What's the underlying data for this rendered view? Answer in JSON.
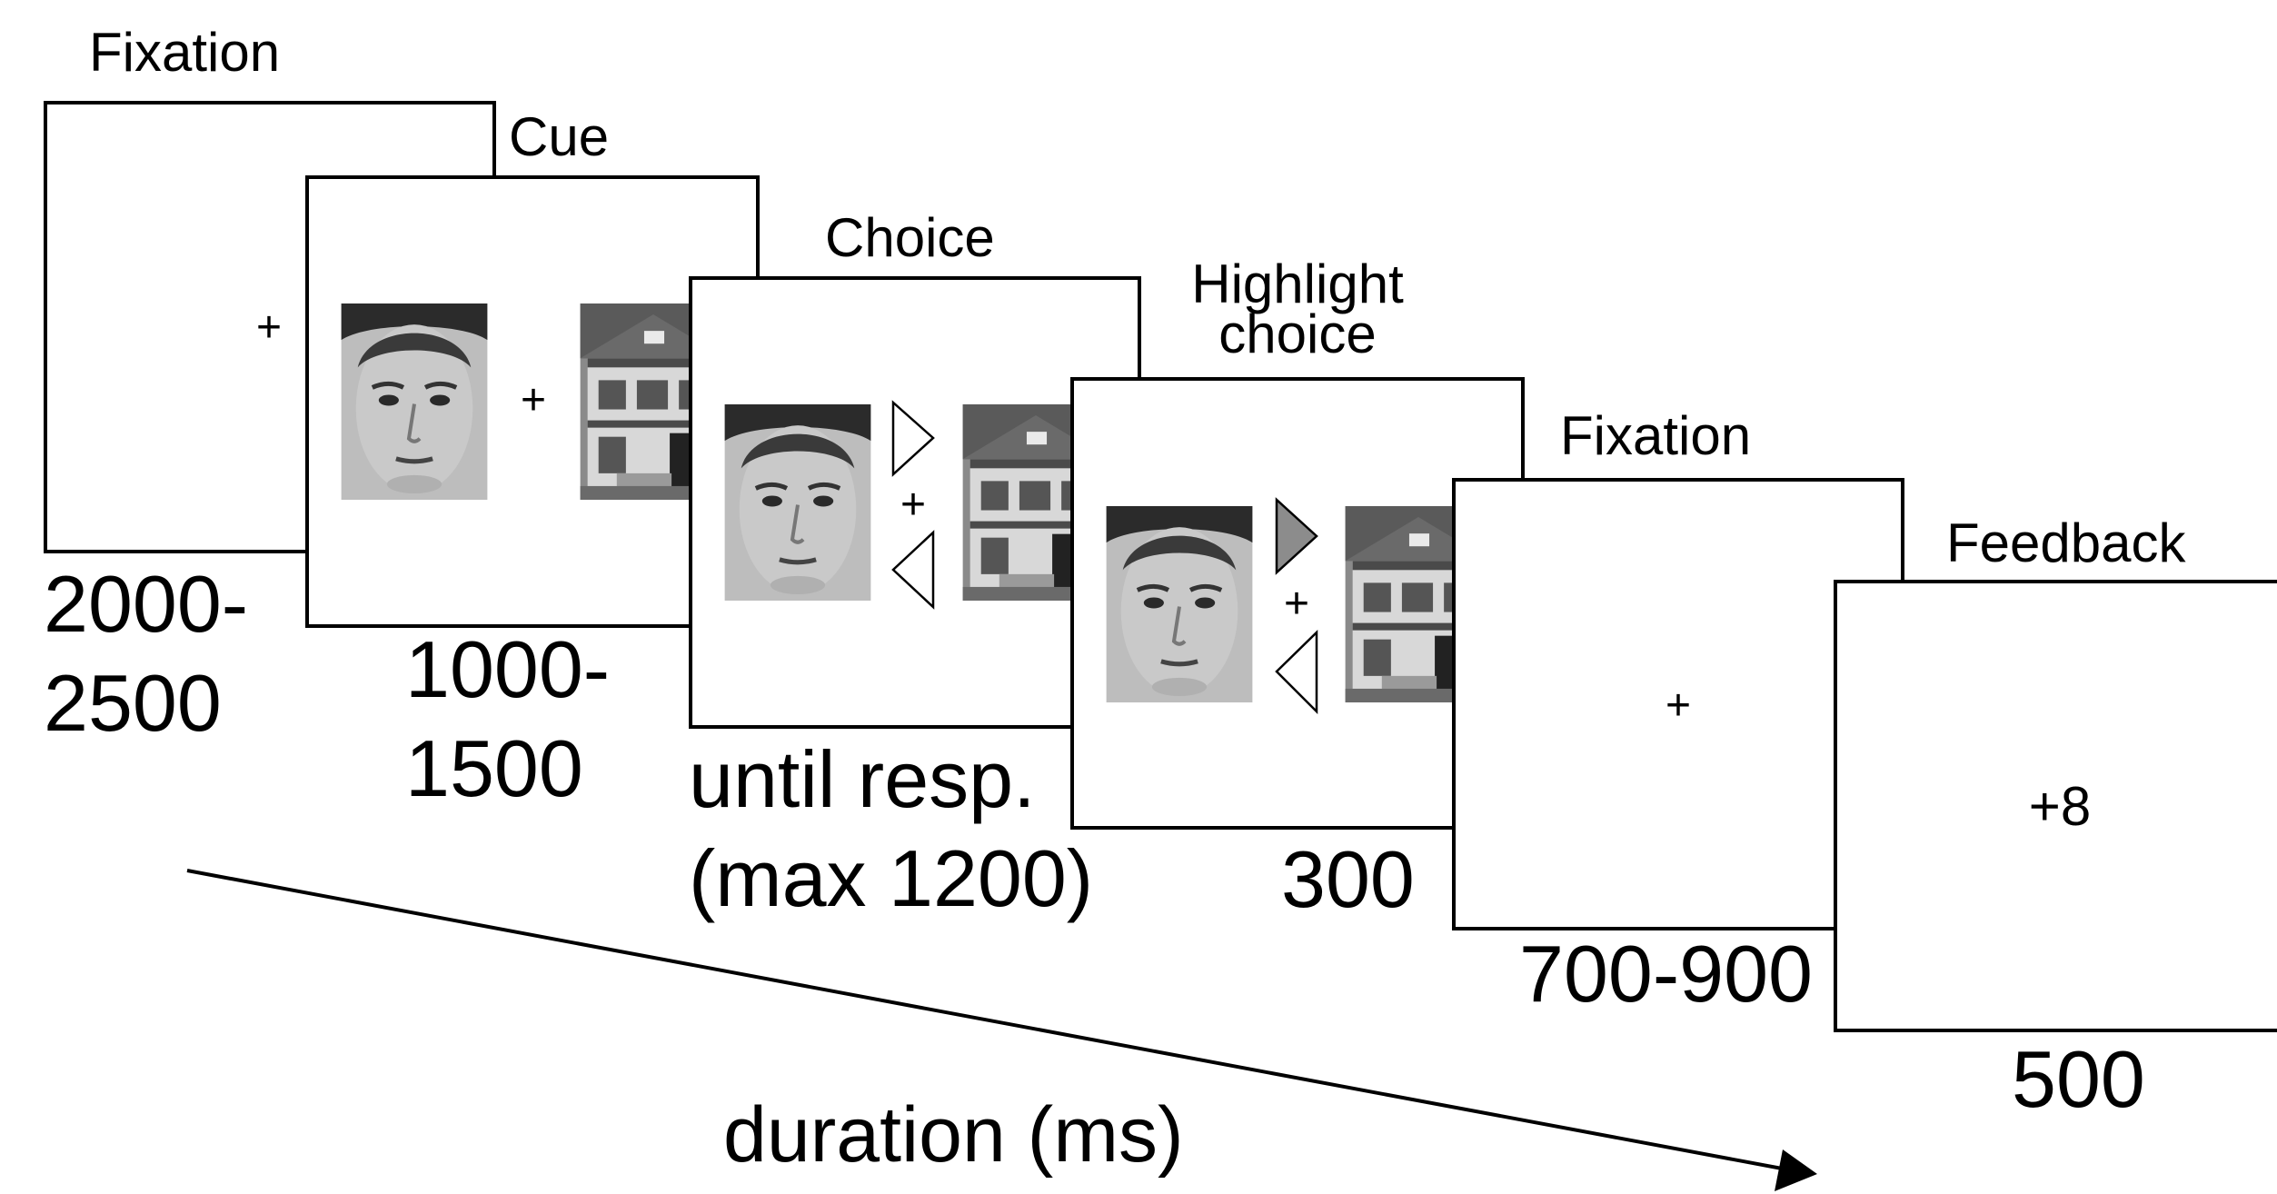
{
  "stages": [
    {
      "label_lines": [
        "Fixation"
      ],
      "duration_lines": [
        "2000-",
        "2500"
      ],
      "content": "fixation-cross"
    },
    {
      "label_lines": [
        "Cue"
      ],
      "duration_lines": [
        "1000-",
        "1500"
      ],
      "content": "face-house-cue"
    },
    {
      "label_lines": [
        "Choice"
      ],
      "duration_lines": [
        "until resp.",
        "(max 1200)"
      ],
      "content": "face-house-choice-arrows"
    },
    {
      "label_lines": [
        "Highlight",
        "choice"
      ],
      "duration_lines": [
        "300"
      ],
      "content": "face-house-highlighted-arrow"
    },
    {
      "label_lines": [
        "Fixation"
      ],
      "duration_lines": [
        "700-900"
      ],
      "content": "fixation-cross"
    },
    {
      "label_lines": [
        "Feedback"
      ],
      "duration_lines": [
        "500"
      ],
      "content": "feedback-value"
    }
  ],
  "feedback_value": "+8",
  "axis_label": "duration (ms)",
  "colors": {
    "highlight_arrow": "#8c8c8c",
    "stroke": "#000000"
  }
}
